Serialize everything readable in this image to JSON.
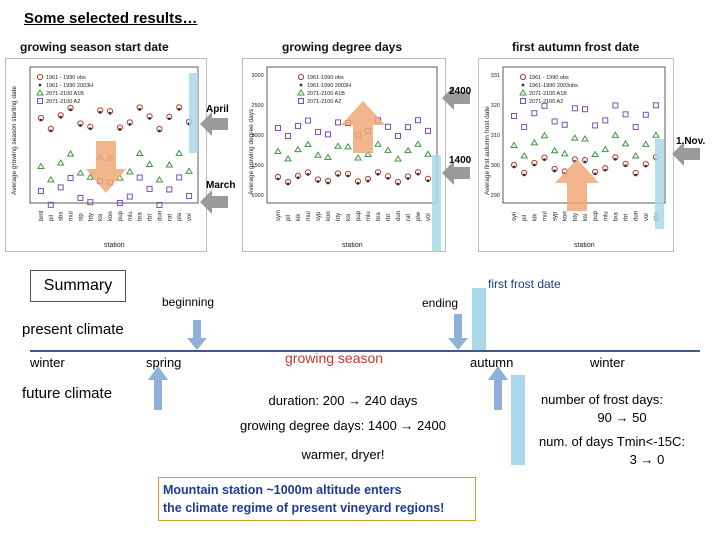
{
  "title": "Some selected results…",
  "headers": {
    "start": "growing season start date",
    "gdd": "growing degree days",
    "frost": "first autumn frost date"
  },
  "annotations": {
    "april": "April",
    "march": "March",
    "gdd_high": "2400",
    "gdd_low": "1400",
    "nov": "1.Nov."
  },
  "charts": [
    {
      "ylabel": "Average growing season starting date",
      "xlabel": "station",
      "legend": [
        "1961 - 1990 obs",
        "1961 - 1990 2003H",
        "2071-2100 A1B",
        "2071-2100 A2"
      ],
      "stations": [
        "brnt",
        "pil",
        "sbs",
        "mul",
        "sip",
        "hty",
        "ksi",
        "kon",
        "pup",
        "mlu",
        "bra",
        "rbt",
        "dun",
        "rat",
        "pla",
        "vol"
      ]
    },
    {
      "ylabel": "Average growing degree days",
      "xlabel": "station",
      "legend": [
        "1961-1990 obs",
        "1961-1990 2003H",
        "2071-2100 A1B",
        "2071-2100 A2"
      ],
      "yticks": [
        "3000",
        "2500",
        "2000",
        "1500",
        "1000"
      ],
      "stations": [
        "sym",
        "pil",
        "kik",
        "mul",
        "syp",
        "kon",
        "hty",
        "ksi",
        "pup",
        "mlu",
        "bra",
        "rbt",
        "dun",
        "rat",
        "plw",
        "vol"
      ]
    },
    {
      "ylabel": "Average first autumn frost date",
      "xlabel": "station",
      "legend": [
        "1961 - 1990 obs",
        "1961-1990 2003obs",
        "2071-2100 A1B",
        "2071-2100 A2"
      ],
      "yticks": [
        "331",
        "320",
        "310",
        "300",
        "290"
      ],
      "stations": [
        "syri",
        "pil",
        "kik",
        "mul",
        "syp",
        "kon",
        "hty",
        "ksi",
        "pup",
        "mlu",
        "bra",
        "rbt",
        "dun",
        "vol",
        "plw"
      ]
    }
  ],
  "summary": {
    "label": "Summary",
    "beginning": "beginning",
    "ending": "ending",
    "first_frost": "first frost date",
    "present": "present climate",
    "future": "future climate",
    "winter": "winter",
    "spring": "spring",
    "growing_season": "growing season",
    "autumn": "autumn",
    "winter2": "winter",
    "duration": "duration:  200 → 240 days",
    "gdd": "growing degree days: 1400 → 2400",
    "warmer": "warmer, dryer!",
    "frost_days_1": "number of frost days:",
    "frost_days_2": "90 → 50",
    "tmin_1": "num. of days Tmin<-15C:",
    "tmin_2": "3 → 0",
    "note_1": "Mountain station ~1000m altitude enters",
    "note_2": "the climate regime of present vineyard regions!"
  },
  "colors": {
    "timeline": "#3a5a8c",
    "blue_arrow": "#8fb0d8",
    "light_bar": "#a8d8ea",
    "orange_arrow": "#f0a878",
    "grey_arrow": "#9a9a9a",
    "note_text": "#1f3a93"
  }
}
